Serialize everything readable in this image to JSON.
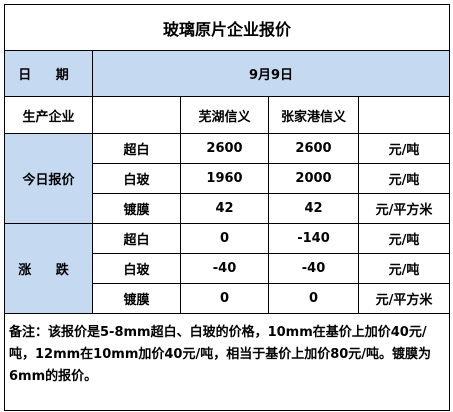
{
  "title": "玻璃原片企业报价",
  "header": {
    "date_label": "日 期",
    "date": "9月9日"
  },
  "companies": {
    "label": "生产企业",
    "names": [
      "芜湖信义",
      "张家港信义"
    ]
  },
  "sections": [
    {
      "label": "今日报价",
      "rows": [
        {
          "item": "超白",
          "values": [
            2600,
            2600
          ],
          "unit": "元/吨"
        },
        {
          "item": "白玻",
          "values": [
            1960,
            2000
          ],
          "unit": "元/吨"
        },
        {
          "item": "镀膜",
          "values": [
            42,
            42
          ],
          "unit": "元/平方米"
        }
      ]
    },
    {
      "label": "涨 跌",
      "rows": [
        {
          "item": "超白",
          "values": [
            0,
            -140
          ],
          "unit": "元/吨"
        },
        {
          "item": "白玻",
          "values": [
            -40,
            -40
          ],
          "unit": "元/吨"
        },
        {
          "item": "镀膜",
          "values": [
            0,
            0
          ],
          "unit": "元/平方米"
        }
      ]
    }
  ],
  "note": "备注：该报价是5-8mm超白、白玻的价格，10mm在基价上加价40元/吨，12mm在10mm加价40元/吨，相当于基价上加价80元/吨。镀膜为6mm的报价。"
}
